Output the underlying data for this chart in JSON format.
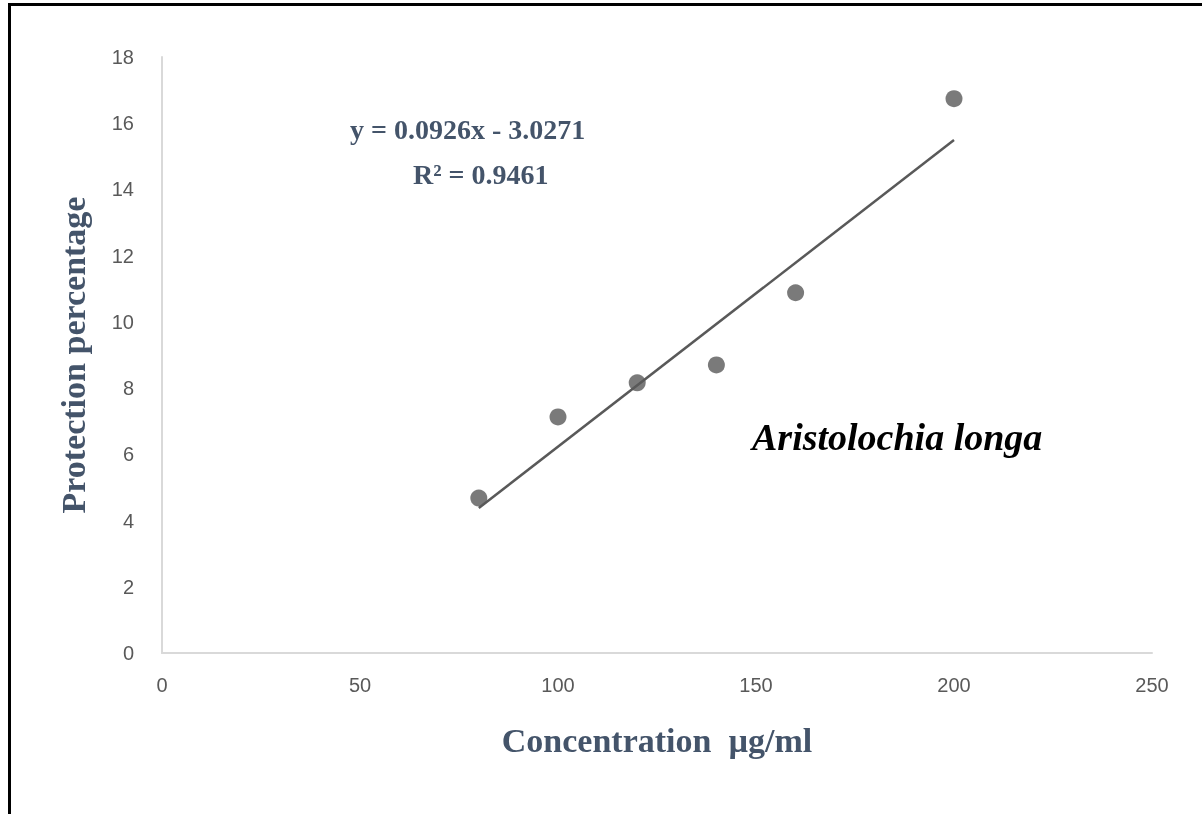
{
  "chart_data": {
    "type": "scatter",
    "xlabel": "Concentration  µg/ml",
    "ylabel": "Protection percentage",
    "x": [
      80,
      100,
      120,
      140,
      160,
      200
    ],
    "series": [
      {
        "color": "#595959",
        "marker": "circle",
        "values": [
          4.68,
          7.13,
          8.16,
          8.7,
          10.88,
          16.74
        ]
      },
      {
        "type": "line",
        "color": "#595959",
        "marker": "none",
        "line_style": "solid",
        "x": [
          80,
          200
        ],
        "values": [
          4.38,
          15.49
        ]
      }
    ],
    "xlim": [
      0,
      250
    ],
    "xticks": [
      0,
      50,
      100,
      150,
      200,
      250
    ],
    "ylim": [
      0,
      18
    ],
    "yticks": [
      0,
      2,
      4,
      6,
      8,
      10,
      12,
      14,
      16,
      18
    ],
    "grid": false,
    "annotations": [
      "y = 0.0926x - 3.0271",
      "R² = 0.9461",
      "Aristolochia longa"
    ]
  }
}
